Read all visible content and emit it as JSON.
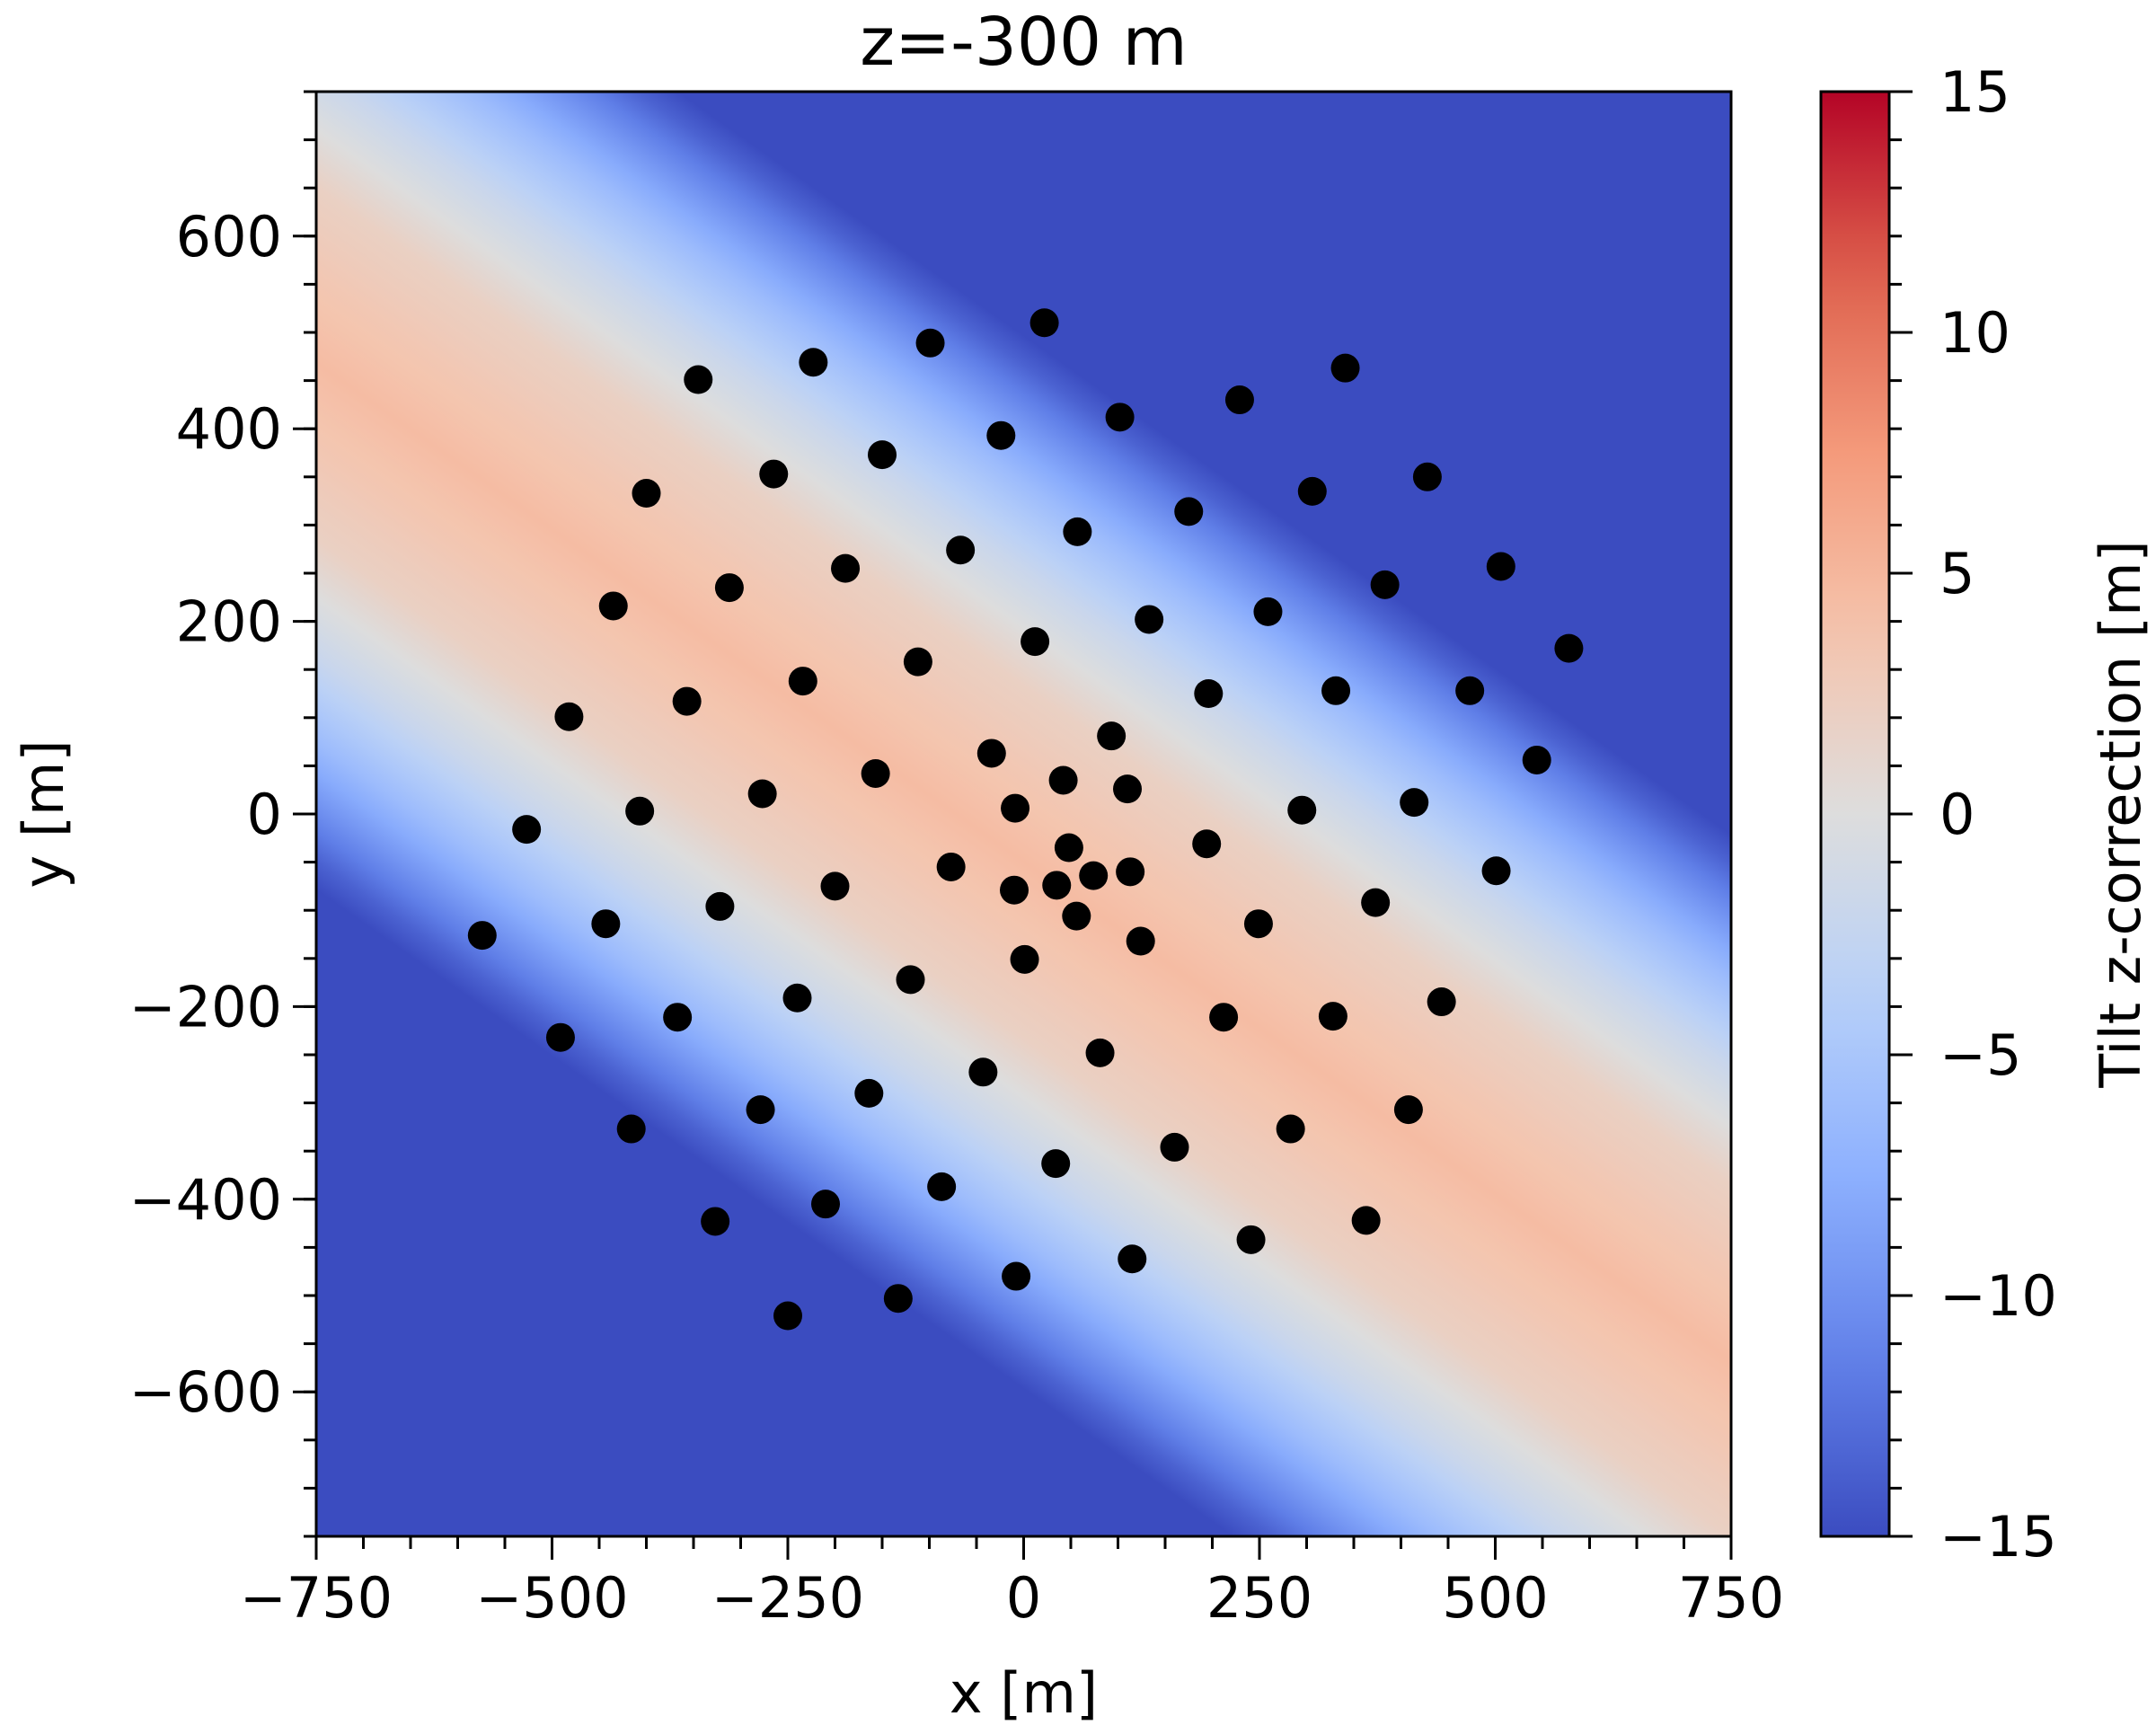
{
  "chart_data": {
    "type": "heatmap",
    "title": "z=-300 m",
    "xlabel": "x [m]",
    "ylabel": "y [m]",
    "xlim": [
      -750,
      750
    ],
    "ylim": [
      -750,
      750
    ],
    "x_ticks": [
      -750,
      -500,
      -250,
      0,
      250,
      500,
      750
    ],
    "x_tick_labels": [
      "−750",
      "−500",
      "−250",
      "0",
      "250",
      "500",
      "750"
    ],
    "y_ticks": [
      -600,
      -400,
      -200,
      0,
      200,
      400,
      600
    ],
    "y_tick_labels": [
      "−600",
      "−400",
      "−200",
      "0",
      "200",
      "400",
      "600"
    ],
    "minor_tick_step": 50,
    "colormap": "coolwarm",
    "colorbar": {
      "label": "Tilt z-correction [m]",
      "range": [
        -15,
        15
      ],
      "ticks": [
        -15,
        -10,
        -5,
        0,
        5,
        10,
        15
      ],
      "tick_labels": [
        "−15",
        "−10",
        "−5",
        "0",
        "5",
        "10",
        "15"
      ],
      "minor_tick_step": 1
    },
    "field": {
      "description": "diagonal stripe, positive ridge along line y = -0.72x - 50",
      "ridge_value": 4.5,
      "profile": [
        {
          "d": 0,
          "v": 4.5
        },
        {
          "d": 150,
          "v": 2.0
        },
        {
          "d": 250,
          "v": -2.0
        },
        {
          "d": 330,
          "v": -6.5
        },
        {
          "d": 400,
          "v": -11.5
        },
        {
          "d": 445,
          "v": -15
        }
      ]
    },
    "marker_color": "#000000",
    "points": [
      [
        -574,
        -126
      ],
      [
        -527,
        -16
      ],
      [
        -491,
        -232
      ],
      [
        -482,
        101
      ],
      [
        -443,
        -114
      ],
      [
        -435,
        216
      ],
      [
        -407,
        3
      ],
      [
        -400,
        333
      ],
      [
        -416,
        -327
      ],
      [
        -367,
        -211
      ],
      [
        -357,
        117
      ],
      [
        -345,
        451
      ],
      [
        -327,
        -423
      ],
      [
        -322,
        -96
      ],
      [
        -312,
        235
      ],
      [
        -279,
        -307
      ],
      [
        -277,
        21
      ],
      [
        -265,
        353
      ],
      [
        -250,
        -521
      ],
      [
        -240,
        -191
      ],
      [
        -234,
        138
      ],
      [
        -223,
        469
      ],
      [
        -210,
        -405
      ],
      [
        -200,
        -75
      ],
      [
        -189,
        255
      ],
      [
        -164,
        -290
      ],
      [
        -157,
        42
      ],
      [
        -150,
        373
      ],
      [
        -133,
        -503
      ],
      [
        -120,
        -172
      ],
      [
        -112,
        158
      ],
      [
        -99,
        489
      ],
      [
        -87,
        -387
      ],
      [
        -77,
        -55
      ],
      [
        -67,
        274
      ],
      [
        -43,
        -268
      ],
      [
        -34,
        63
      ],
      [
        -24,
        393
      ],
      [
        -10,
        -79
      ],
      [
        -9,
        6
      ],
      [
        -8,
        -480
      ],
      [
        1,
        -151
      ],
      [
        12,
        179
      ],
      [
        22,
        510
      ],
      [
        34,
        -363
      ],
      [
        35,
        -74
      ],
      [
        42,
        35
      ],
      [
        48,
        -35
      ],
      [
        56,
        -106
      ],
      [
        57,
        293
      ],
      [
        74,
        -64
      ],
      [
        81,
        -248
      ],
      [
        93,
        81
      ],
      [
        102,
        412
      ],
      [
        110,
        26
      ],
      [
        113,
        -60
      ],
      [
        115,
        -462
      ],
      [
        124,
        -132
      ],
      [
        133,
        202
      ],
      [
        160,
        -346
      ],
      [
        175,
        314
      ],
      [
        194,
        -31
      ],
      [
        196,
        125
      ],
      [
        212,
        -211
      ],
      [
        229,
        430
      ],
      [
        241,
        -442
      ],
      [
        249,
        -114
      ],
      [
        259,
        210
      ],
      [
        283,
        -327
      ],
      [
        295,
        4
      ],
      [
        306,
        335
      ],
      [
        328,
        -210
      ],
      [
        331,
        128
      ],
      [
        341,
        463
      ],
      [
        363,
        -422
      ],
      [
        373,
        -92
      ],
      [
        383,
        238
      ],
      [
        408,
        -307
      ],
      [
        414,
        12
      ],
      [
        428,
        350
      ],
      [
        443,
        -195
      ],
      [
        473,
        128
      ],
      [
        501,
        -59
      ],
      [
        506,
        257
      ],
      [
        544,
        56
      ],
      [
        578,
        172
      ]
    ]
  }
}
